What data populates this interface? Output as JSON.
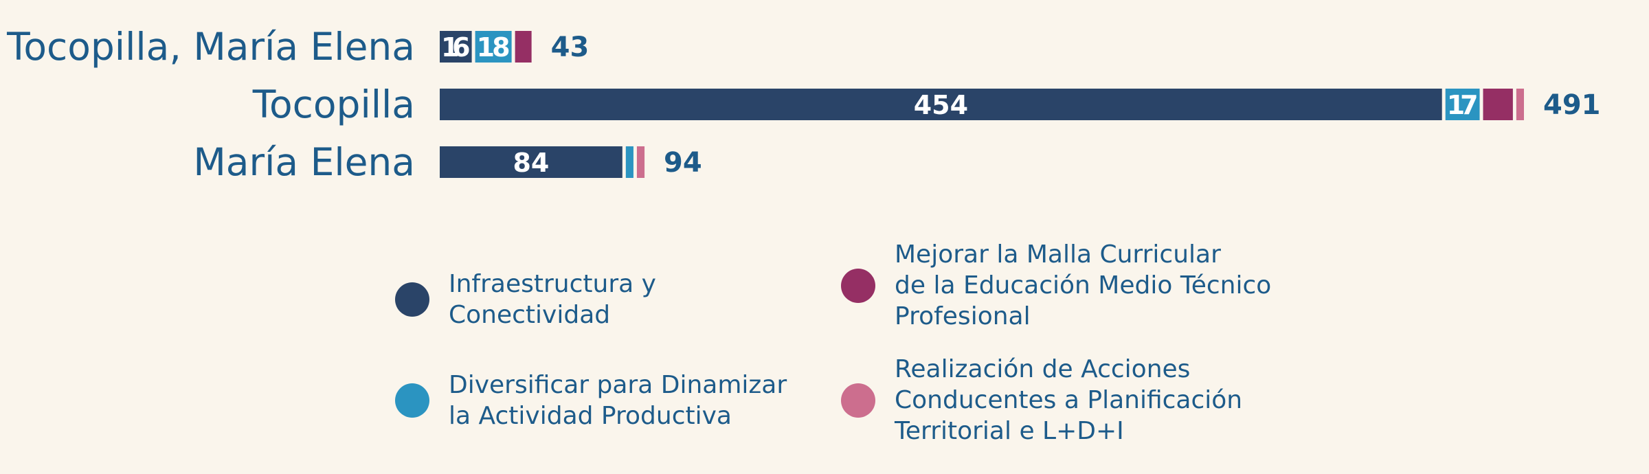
{
  "chart_data": {
    "type": "bar",
    "orientation": "horizontal",
    "stacked": true,
    "categories": [
      "Tocopilla, María Elena",
      "Tocopilla",
      "María Elena"
    ],
    "series": [
      {
        "name": "Infraestructura y\nConectividad",
        "color": "#2a4468",
        "values": [
          16,
          454,
          84
        ]
      },
      {
        "name": "Diversificar para Dinamizar\nla Actividad Productiva",
        "color": "#2b94c1",
        "values": [
          18,
          17,
          5
        ]
      },
      {
        "name": "Mejorar la Malla Curricular\nde la Educación Medio Técnico\nProfesional",
        "color": "#952f64",
        "values": [
          9,
          15,
          0
        ]
      },
      {
        "name": "Realización de Acciones\nConducentes a Planificación\nTerritorial e L+D+I",
        "color": "#cc6e8e",
        "values": [
          0,
          5,
          5
        ]
      }
    ],
    "segment_labels": [
      [
        "16",
        "18",
        "",
        ""
      ],
      [
        "454",
        "17",
        "",
        ""
      ],
      [
        "84",
        "",
        "",
        ""
      ]
    ],
    "totals": [
      43,
      491,
      94
    ],
    "xlim": [
      0,
      491
    ],
    "grid": false,
    "legend_position": "bottom",
    "colors": {
      "category_label": "#1d5b8a",
      "total_label": "#1d5b8a",
      "segment_label": "#ffffff",
      "background": "#faf5ec"
    }
  }
}
